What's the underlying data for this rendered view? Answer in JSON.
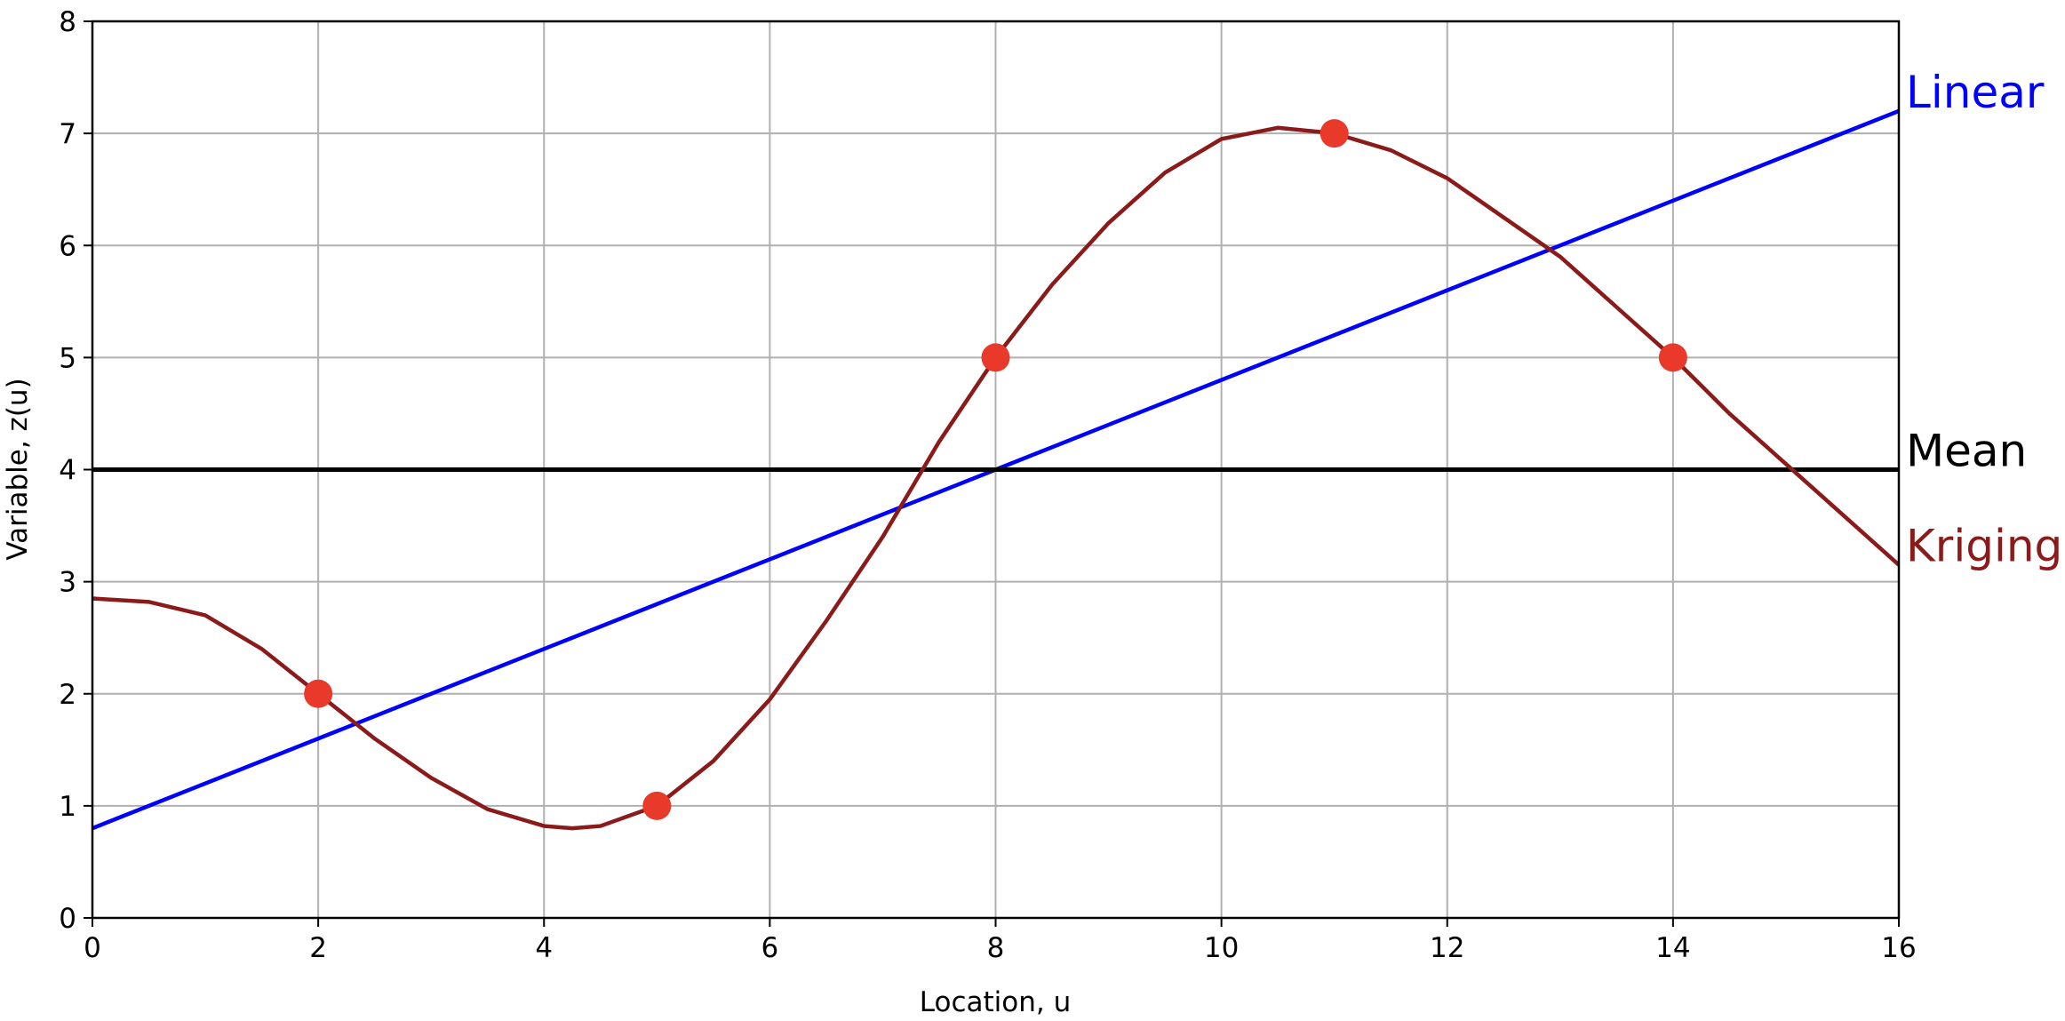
{
  "chart_data": {
    "type": "line",
    "x_label": "Location, u",
    "y_label": "Variable, z(u)",
    "xlim": [
      0,
      16
    ],
    "xticks": [
      0,
      2,
      4,
      6,
      8,
      10,
      12,
      14,
      16
    ],
    "ylim": [
      0,
      8
    ],
    "yticks": [
      0,
      1,
      2,
      3,
      4,
      5,
      6,
      7,
      8
    ],
    "grid": true,
    "series": [
      {
        "name": "Linear",
        "type": "line",
        "color": "#0000ff",
        "x": [
          0,
          16
        ],
        "values": [
          0.8,
          7.2
        ]
      },
      {
        "name": "Mean",
        "type": "line",
        "color": "#000000",
        "x": [
          0,
          16
        ],
        "values": [
          4,
          4
        ]
      },
      {
        "name": "Kriging",
        "type": "line",
        "color": "#8b1a1a",
        "x": [
          0,
          0.5,
          1,
          1.5,
          2,
          2.5,
          3,
          3.5,
          4,
          4.25,
          4.5,
          5,
          5.5,
          6,
          6.5,
          7,
          7.5,
          8,
          8.5,
          9,
          9.5,
          10,
          10.5,
          11,
          11.5,
          12,
          12.5,
          13,
          13.5,
          14,
          14.5,
          15,
          15.5,
          16
        ],
        "values": [
          2.85,
          2.82,
          2.7,
          2.4,
          2.0,
          1.6,
          1.25,
          0.97,
          0.82,
          0.8,
          0.82,
          1.0,
          1.4,
          1.95,
          2.65,
          3.4,
          4.25,
          5.0,
          5.65,
          6.2,
          6.65,
          6.95,
          7.05,
          7.0,
          6.85,
          6.6,
          6.25,
          5.9,
          5.45,
          5.0,
          4.5,
          4.05,
          3.6,
          3.15
        ]
      },
      {
        "type": "scatter",
        "color": "#e8392a",
        "x": [
          2,
          5,
          8,
          11,
          14
        ],
        "values": [
          2,
          1,
          5,
          7,
          5
        ]
      }
    ]
  }
}
